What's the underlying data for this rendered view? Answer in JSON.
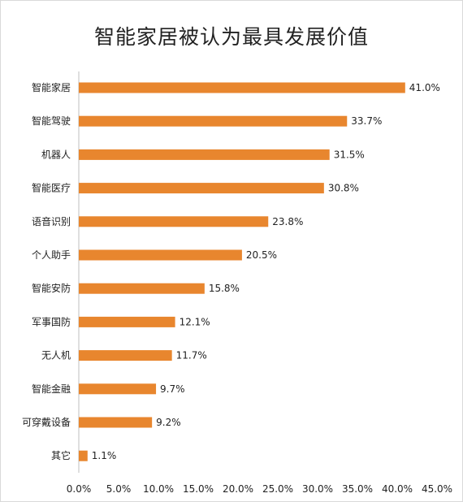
{
  "chart_data": {
    "type": "bar",
    "orientation": "horizontal",
    "title": "智能家居被认为最具发展价值",
    "categories": [
      "智能家居",
      "智能驾驶",
      "机器人",
      "智能医疗",
      "语音识别",
      "个人助手",
      "智能安防",
      "军事国防",
      "无人机",
      "智能金融",
      "可穿戴设备",
      "其它"
    ],
    "values": [
      41.0,
      33.7,
      31.5,
      30.8,
      23.8,
      20.5,
      15.8,
      12.1,
      11.7,
      9.7,
      9.2,
      1.1
    ],
    "value_labels": [
      "41.0%",
      "33.7%",
      "31.5%",
      "30.8%",
      "23.8%",
      "20.5%",
      "15.8%",
      "12.1%",
      "11.7%",
      "9.7%",
      "9.2%",
      "1.1%"
    ],
    "xlim": [
      0,
      45
    ],
    "x_ticks": [
      "0.0%",
      "5.0%",
      "10.0%",
      "15.0%",
      "20.0%",
      "25.0%",
      "30.0%",
      "35.0%",
      "40.0%",
      "45.0%"
    ],
    "bar_color": "#E8862E",
    "grid": false,
    "legend": "none"
  }
}
